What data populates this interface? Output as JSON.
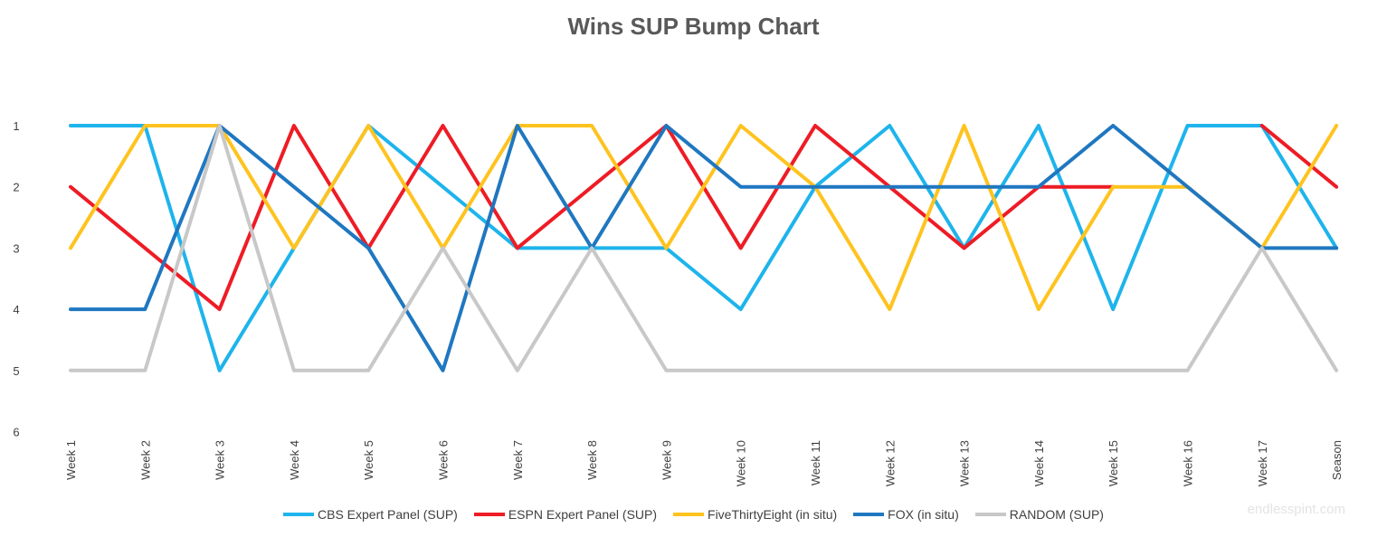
{
  "chart_data": {
    "type": "line",
    "title": "Wins SUP Bump Chart",
    "categories": [
      "Week 1",
      "Week 2",
      "Week 3",
      "Week 4",
      "Week 5",
      "Week 6",
      "Week 7",
      "Week 8",
      "Week 9",
      "Week 10",
      "Week 11",
      "Week 12",
      "Week 13",
      "Week 14",
      "Week 15",
      "Week 16",
      "Week 17",
      "Season"
    ],
    "y_ticks": [
      "1",
      "2",
      "3",
      "4",
      "5",
      "6"
    ],
    "ylim": [
      1,
      6
    ],
    "y_reversed": true,
    "grid": false,
    "legend_position": "bottom",
    "series": [
      {
        "name": "CBS Expert Panel (SUP)",
        "color": "#1EB4EC",
        "values": [
          1,
          1,
          5,
          3,
          1,
          2,
          3,
          3,
          3,
          4,
          2,
          1,
          3,
          1,
          4,
          1,
          1,
          3
        ]
      },
      {
        "name": "ESPN Expert Panel (SUP)",
        "color": "#EE1C25",
        "values": [
          2,
          3,
          4,
          1,
          3,
          1,
          3,
          2,
          1,
          3,
          1,
          2,
          3,
          2,
          2,
          null,
          1,
          2
        ]
      },
      {
        "name": "FiveThirtyEight (in situ)",
        "color": "#FFC31F",
        "values": [
          3,
          1,
          1,
          3,
          1,
          3,
          1,
          1,
          3,
          1,
          2,
          4,
          1,
          4,
          2,
          2,
          3,
          1
        ]
      },
      {
        "name": "FOX (in situ)",
        "color": "#1F77C0",
        "values": [
          4,
          4,
          1,
          2,
          3,
          5,
          1,
          3,
          1,
          2,
          2,
          2,
          2,
          2,
          1,
          2,
          3,
          3
        ]
      },
      {
        "name": "RANDOM (SUP)",
        "color": "#C8C8C8",
        "values": [
          5,
          5,
          1,
          5,
          5,
          3,
          5,
          3,
          5,
          5,
          5,
          5,
          5,
          5,
          5,
          5,
          3,
          5
        ]
      }
    ]
  },
  "watermark": "endlesspint.com"
}
